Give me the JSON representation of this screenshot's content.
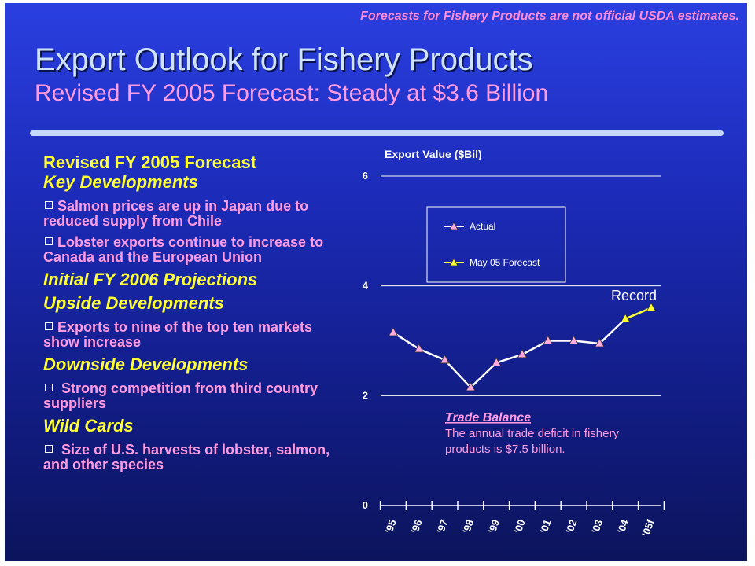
{
  "header": {
    "disclaimer": "Forecasts for Fishery Products are not official USDA estimates.",
    "title": "Export Outlook for Fishery Products",
    "subtitle": "Revised FY 2005 Forecast:  Steady at $3.6 Billion"
  },
  "left": {
    "heading1": "Revised FY 2005 Forecast",
    "section_key": "Key Developments",
    "key_bullets": [
      "Salmon prices are up in Japan due to reduced supply from Chile",
      "Lobster exports continue to increase to Canada and the European Union"
    ],
    "heading2": "Initial FY 2006 Projections",
    "section_upside": "Upside Developments",
    "upside_bullets": [
      "Exports to nine of the top ten markets show increase"
    ],
    "section_downside": "Downside Developments",
    "downside_bullets": [
      " Strong competition from third country suppliers"
    ],
    "section_wild": "Wild Cards",
    "wild_bullets": [
      " Size of U.S. harvests of lobster, salmon, and other species"
    ]
  },
  "colors": {
    "actual": "#ffffff",
    "forecast": "#ffff33",
    "marker_actual": "#ffaadd",
    "marker_forecast": "#ffff33",
    "pink_text": "#ff9be0"
  },
  "chart_data": {
    "type": "line",
    "ylabel": "Export Value ($Bil)",
    "ylim": [
      0,
      6
    ],
    "yticks": [
      0,
      2,
      4,
      6
    ],
    "grid": true,
    "categories": [
      "'95",
      "'96",
      "'97",
      "'98",
      "'99",
      "'00",
      "'01",
      "'02",
      "'03",
      "'04",
      "'05f"
    ],
    "series": [
      {
        "name": "Actual",
        "values": [
          3.15,
          2.85,
          2.65,
          2.15,
          2.6,
          2.75,
          3.0,
          3.0,
          2.95,
          3.4,
          null
        ]
      },
      {
        "name": "May 05 Forecast",
        "values": [
          null,
          null,
          null,
          null,
          null,
          null,
          null,
          null,
          null,
          3.4,
          3.6
        ]
      }
    ],
    "legend_position": "top-left",
    "annotations": {
      "record_label": "Record",
      "trade_balance_title": "Trade Balance",
      "trade_balance_text": [
        "The annual trade deficit in fishery",
        "products is $7.5 billion."
      ]
    }
  }
}
